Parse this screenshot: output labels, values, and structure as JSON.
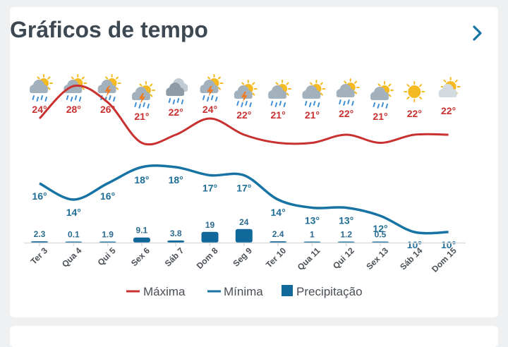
{
  "header": {
    "title": "Gráficos de tempo",
    "nav_icon": "chevron-right-icon"
  },
  "colors": {
    "max": "#c8312f",
    "min": "#1673a3",
    "precip": "#10689b",
    "sun": "#f5b921",
    "cloud": "#a3b1bc",
    "rain": "#3f8fd6",
    "bolt": "#f07a1f"
  },
  "chart_data": {
    "type": "line",
    "categories": [
      "Ter 3",
      "Qua 4",
      "Qui 5",
      "Sex 6",
      "Sáb 7",
      "Dom 8",
      "Seg 9",
      "Ter 10",
      "Qua 11",
      "Qui 12",
      "Sex 13",
      "Sáb 14",
      "Dom 15"
    ],
    "icons": [
      "sun-cloud-rain-icon",
      "sun-cloud-rain-icon",
      "sun-cloud-storm-icon",
      "sun-cloud-storm-icon",
      "cloud-rain-icon",
      "sun-cloud-storm-icon",
      "sun-cloud-storm-icon",
      "sun-cloud-rain-icon",
      "sun-cloud-rain-icon",
      "sun-cloud-rain-icon",
      "sun-cloud-rain-icon",
      "sun-icon",
      "sun-cloud-icon"
    ],
    "series": [
      {
        "name": "Máxima",
        "values": [
          24,
          28,
          26,
          21,
          22,
          24,
          22,
          21,
          21,
          22,
          21,
          22,
          22
        ],
        "labels": [
          "24°",
          "28°",
          "26°",
          "21°",
          "22°",
          "24°",
          "22°",
          "21°",
          "21°",
          "22°",
          "21°",
          "22°",
          "22°"
        ]
      },
      {
        "name": "Mínima",
        "values": [
          16,
          14,
          16,
          18,
          18,
          17,
          17,
          14,
          13,
          13,
          12,
          10,
          10
        ],
        "labels": [
          "16°",
          "14°",
          "16°",
          "18°",
          "18°",
          "17°",
          "17°",
          "14°",
          "13°",
          "13°",
          "12°",
          "10°",
          "10°"
        ]
      },
      {
        "name": "Precipitação",
        "values": [
          2.3,
          0.1,
          1.9,
          9.1,
          3.8,
          19,
          24,
          2.4,
          1,
          1.2,
          0.5,
          0,
          0
        ],
        "labels": [
          "2.3",
          "0.1",
          "1.9",
          "9.1",
          "3.8",
          "19",
          "24",
          "2.4",
          "1",
          "1.2",
          "0.5",
          "",
          ""
        ]
      }
    ],
    "legend": {
      "position": "bottom",
      "items": [
        "Máxima",
        "Mínima",
        "Precipitação"
      ]
    }
  }
}
